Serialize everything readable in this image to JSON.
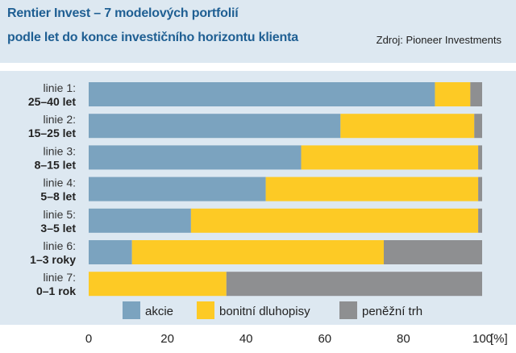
{
  "header": {
    "title_line1": "Rentier Invest – 7 modelových portfolií",
    "title_line2": "podle let do konce investičního horizontu klienta",
    "source": "Zdroj: Pioneer Investments"
  },
  "chart_data": {
    "type": "bar",
    "orientation": "horizontal",
    "stacked": true,
    "categories": [
      {
        "name": "linie 1:",
        "range": "25–40 let"
      },
      {
        "name": "linie 2:",
        "range": "15–25 let"
      },
      {
        "name": "linie 3:",
        "range": "8–15 let"
      },
      {
        "name": "linie 4:",
        "range": "5–8 let"
      },
      {
        "name": "linie 5:",
        "range": "3–5 let"
      },
      {
        "name": "linie 6:",
        "range": "1–3 roky"
      },
      {
        "name": "linie 7:",
        "range": "0–1 rok"
      }
    ],
    "series": [
      {
        "name": "akcie",
        "color": "#7ba3bf",
        "values": [
          88,
          64,
          54,
          45,
          26,
          11,
          0
        ]
      },
      {
        "name": "bonitní dluhopisy",
        "color": "#fdca25",
        "values": [
          9,
          34,
          45,
          54,
          73,
          64,
          35
        ]
      },
      {
        "name": "peněžní trh",
        "color": "#8e8f91",
        "values": [
          3,
          2,
          1,
          1,
          1,
          25,
          65
        ]
      }
    ],
    "x_ticks": [
      "0",
      "20",
      "40",
      "60",
      "80",
      "100"
    ],
    "x_unit": "[%]",
    "xlim": [
      0,
      100
    ],
    "legend_position": "bottom"
  }
}
